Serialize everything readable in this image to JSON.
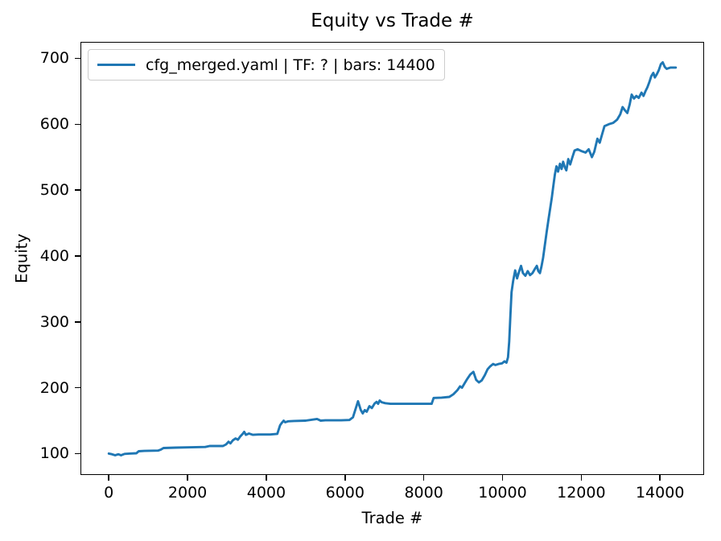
{
  "figure": {
    "background": "#ffffff"
  },
  "chart_data": {
    "type": "line",
    "title": "Equity vs Trade #",
    "xlabel": "Trade #",
    "ylabel": "Equity",
    "xlim": [
      -720,
      15120
    ],
    "ylim": [
      67.5,
      725
    ],
    "xticks": [
      0,
      2000,
      4000,
      6000,
      8000,
      10000,
      12000,
      14000
    ],
    "yticks": [
      100,
      200,
      300,
      400,
      500,
      600,
      700
    ],
    "grid": false,
    "legend": {
      "position": "upper-left",
      "entries": [
        {
          "label": "cfg_merged.yaml | TF: ? | bars: 14400",
          "color": "#1f77b4"
        }
      ]
    },
    "colors": {
      "line": "#1f77b4",
      "spine": "#000000",
      "legend_border": "#cccccc",
      "text": "#000000"
    },
    "series": [
      {
        "name": "cfg_merged.yaml | TF: ? | bars: 14400",
        "color": "#1f77b4",
        "points": [
          [
            0,
            100
          ],
          [
            80,
            99
          ],
          [
            160,
            97.5
          ],
          [
            240,
            99
          ],
          [
            310,
            97.5
          ],
          [
            400,
            99.5
          ],
          [
            520,
            100
          ],
          [
            700,
            100.5
          ],
          [
            760,
            103.5
          ],
          [
            900,
            104
          ],
          [
            1250,
            104.5
          ],
          [
            1320,
            106
          ],
          [
            1390,
            108.5
          ],
          [
            1700,
            109
          ],
          [
            2100,
            109.5
          ],
          [
            2450,
            110
          ],
          [
            2560,
            111.5
          ],
          [
            2900,
            111.5
          ],
          [
            2980,
            114
          ],
          [
            3040,
            118
          ],
          [
            3090,
            115.5
          ],
          [
            3150,
            120
          ],
          [
            3220,
            123
          ],
          [
            3280,
            121
          ],
          [
            3340,
            126
          ],
          [
            3400,
            130
          ],
          [
            3440,
            133
          ],
          [
            3480,
            128.5
          ],
          [
            3560,
            130.5
          ],
          [
            3660,
            128.5
          ],
          [
            3800,
            129
          ],
          [
            4100,
            129
          ],
          [
            4280,
            130
          ],
          [
            4350,
            143
          ],
          [
            4400,
            147
          ],
          [
            4440,
            150
          ],
          [
            4480,
            147.5
          ],
          [
            4560,
            149
          ],
          [
            4700,
            149.5
          ],
          [
            5000,
            150
          ],
          [
            5290,
            152.5
          ],
          [
            5380,
            150
          ],
          [
            5500,
            150.5
          ],
          [
            5900,
            150.5
          ],
          [
            6110,
            151
          ],
          [
            6200,
            155
          ],
          [
            6330,
            179.5
          ],
          [
            6400,
            166
          ],
          [
            6450,
            161
          ],
          [
            6500,
            166
          ],
          [
            6550,
            163.5
          ],
          [
            6620,
            172
          ],
          [
            6680,
            169
          ],
          [
            6750,
            176
          ],
          [
            6800,
            178.5
          ],
          [
            6840,
            175.5
          ],
          [
            6880,
            180.5
          ],
          [
            6930,
            178
          ],
          [
            7020,
            176.5
          ],
          [
            7150,
            175.5
          ],
          [
            7500,
            175.5
          ],
          [
            7900,
            175.5
          ],
          [
            8200,
            175.5
          ],
          [
            8250,
            184.5
          ],
          [
            8450,
            185
          ],
          [
            8650,
            186
          ],
          [
            8750,
            190
          ],
          [
            8850,
            196
          ],
          [
            8920,
            202
          ],
          [
            8970,
            200
          ],
          [
            9030,
            206
          ],
          [
            9100,
            213
          ],
          [
            9180,
            220
          ],
          [
            9260,
            224
          ],
          [
            9330,
            212
          ],
          [
            9400,
            208
          ],
          [
            9470,
            211
          ],
          [
            9550,
            219
          ],
          [
            9620,
            228
          ],
          [
            9680,
            232
          ],
          [
            9760,
            236
          ],
          [
            9820,
            234.5
          ],
          [
            9900,
            236
          ],
          [
            9990,
            237
          ],
          [
            10050,
            240
          ],
          [
            10100,
            238
          ],
          [
            10140,
            246
          ],
          [
            10170,
            270
          ],
          [
            10200,
            310
          ],
          [
            10230,
            345
          ],
          [
            10270,
            362
          ],
          [
            10320,
            378
          ],
          [
            10370,
            366
          ],
          [
            10420,
            376
          ],
          [
            10470,
            385
          ],
          [
            10520,
            374
          ],
          [
            10580,
            370
          ],
          [
            10640,
            377
          ],
          [
            10700,
            371
          ],
          [
            10760,
            374
          ],
          [
            10820,
            380
          ],
          [
            10870,
            385
          ],
          [
            10910,
            377
          ],
          [
            10950,
            374
          ],
          [
            10990,
            384
          ],
          [
            11030,
            397
          ],
          [
            11070,
            414
          ],
          [
            11120,
            436
          ],
          [
            11170,
            456
          ],
          [
            11210,
            472
          ],
          [
            11250,
            488
          ],
          [
            11290,
            506
          ],
          [
            11330,
            524
          ],
          [
            11370,
            536
          ],
          [
            11410,
            528
          ],
          [
            11460,
            540
          ],
          [
            11500,
            532
          ],
          [
            11540,
            543
          ],
          [
            11580,
            535
          ],
          [
            11620,
            530
          ],
          [
            11670,
            547
          ],
          [
            11720,
            539
          ],
          [
            11770,
            549
          ],
          [
            11830,
            560
          ],
          [
            11910,
            562
          ],
          [
            12010,
            559
          ],
          [
            12110,
            557
          ],
          [
            12190,
            562
          ],
          [
            12270,
            550
          ],
          [
            12330,
            558
          ],
          [
            12410,
            578
          ],
          [
            12470,
            572
          ],
          [
            12530,
            585
          ],
          [
            12590,
            597
          ],
          [
            12700,
            600
          ],
          [
            12810,
            602
          ],
          [
            12910,
            607
          ],
          [
            12990,
            615
          ],
          [
            13050,
            626
          ],
          [
            13110,
            621
          ],
          [
            13170,
            617
          ],
          [
            13230,
            630
          ],
          [
            13280,
            645
          ],
          [
            13340,
            639
          ],
          [
            13400,
            643
          ],
          [
            13460,
            640
          ],
          [
            13530,
            648
          ],
          [
            13580,
            643
          ],
          [
            13630,
            650
          ],
          [
            13680,
            656
          ],
          [
            13730,
            664
          ],
          [
            13780,
            673
          ],
          [
            13830,
            678
          ],
          [
            13870,
            671
          ],
          [
            13920,
            676
          ],
          [
            13970,
            682
          ],
          [
            14020,
            691
          ],
          [
            14070,
            694
          ],
          [
            14120,
            687
          ],
          [
            14170,
            684
          ],
          [
            14270,
            686
          ],
          [
            14400,
            686
          ]
        ]
      }
    ]
  }
}
